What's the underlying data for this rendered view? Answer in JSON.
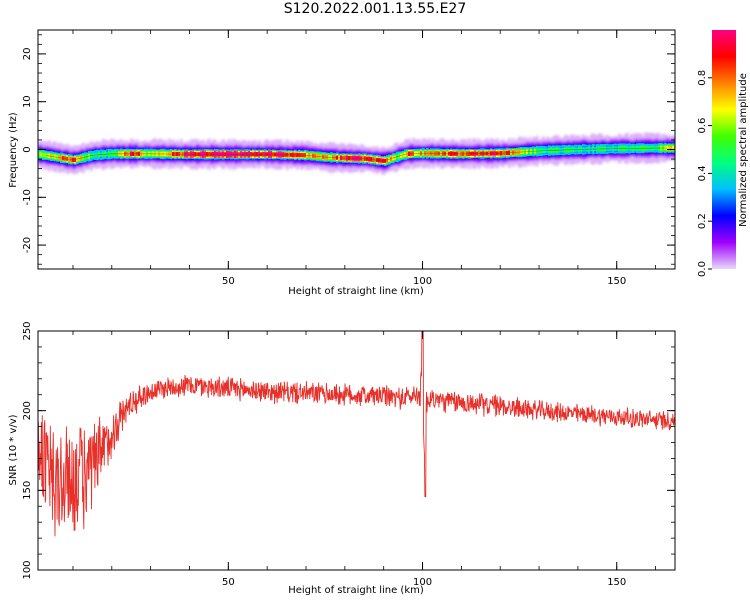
{
  "figure": {
    "title": "S120.2022.001.13.55.E27"
  },
  "chart_data": [
    {
      "type": "heatmap",
      "title": "",
      "xlabel": "Height of straight line (km)",
      "ylabel": "Frequency (Hz)",
      "xlim": [
        1,
        165
      ],
      "ylim": [
        -25,
        25
      ],
      "xticks": [
        50,
        100,
        150
      ],
      "yticks": [
        -20,
        -10,
        0,
        10,
        20
      ],
      "ridge": {
        "x": [
          1,
          5,
          10,
          15,
          20,
          25,
          30,
          40,
          50,
          60,
          70,
          75,
          80,
          85,
          90,
          93,
          96,
          100,
          110,
          120,
          130,
          140,
          150,
          160,
          165
        ],
        "freq": [
          -1.0,
          -1.5,
          -2.2,
          -1.2,
          -0.9,
          -0.9,
          -0.9,
          -1.0,
          -1.0,
          -1.0,
          -1.2,
          -1.6,
          -1.8,
          -1.9,
          -2.4,
          -1.6,
          -0.9,
          -0.8,
          -0.9,
          -0.8,
          -0.3,
          0.0,
          0.2,
          0.3,
          0.3
        ],
        "amplitude": [
          0.55,
          0.7,
          0.85,
          0.45,
          0.5,
          0.95,
          0.6,
          1.0,
          1.0,
          1.0,
          0.8,
          0.7,
          0.9,
          0.9,
          0.85,
          0.6,
          0.8,
          0.7,
          0.9,
          0.9,
          0.5,
          0.45,
          0.45,
          0.5,
          0.7
        ]
      },
      "colorbar": {
        "label": "Normalized spectral amplitude",
        "range": [
          0,
          1
        ],
        "ticks": [
          "0.0",
          "0.2",
          "0.4",
          "0.6",
          "0.8"
        ],
        "colormap": "gist_rainbow_r",
        "colors": [
          "#e8d8f8",
          "#a000ff",
          "#0000ff",
          "#00bfff",
          "#00ff80",
          "#40ff00",
          "#ffff00",
          "#ff8000",
          "#ff0000",
          "#ff0080"
        ]
      }
    },
    {
      "type": "line",
      "title": "",
      "xlabel": "Height of straight line (km)",
      "ylabel": "SNR (10 * v/v)",
      "xlim": [
        1,
        165
      ],
      "ylim": [
        100,
        250
      ],
      "xticks": [
        50,
        100,
        150
      ],
      "yticks": [
        100,
        150,
        200,
        250
      ],
      "color": "#e8302a",
      "envelope": {
        "x": [
          1,
          3,
          5,
          7,
          9,
          11,
          13,
          15,
          18,
          20,
          22,
          25,
          30,
          35,
          40,
          50,
          60,
          70,
          80,
          90,
          95,
          99,
          100,
          100.5,
          101,
          102,
          105,
          110,
          120,
          130,
          140,
          150,
          160,
          165
        ],
        "mean": [
          180,
          165,
          150,
          155,
          155,
          160,
          158,
          162,
          175,
          185,
          195,
          205,
          212,
          215,
          216,
          214,
          212,
          211,
          210,
          209,
          208,
          210,
          225,
          180,
          205,
          208,
          206,
          205,
          203,
          200,
          198,
          196,
          194,
          194
        ],
        "amplitude": [
          30,
          45,
          50,
          45,
          40,
          40,
          40,
          35,
          25,
          18,
          14,
          10,
          8,
          8,
          8,
          8,
          8,
          8,
          8,
          8,
          8,
          8,
          25,
          30,
          10,
          8,
          8,
          8,
          8,
          7,
          7,
          7,
          7,
          7
        ]
      }
    }
  ]
}
